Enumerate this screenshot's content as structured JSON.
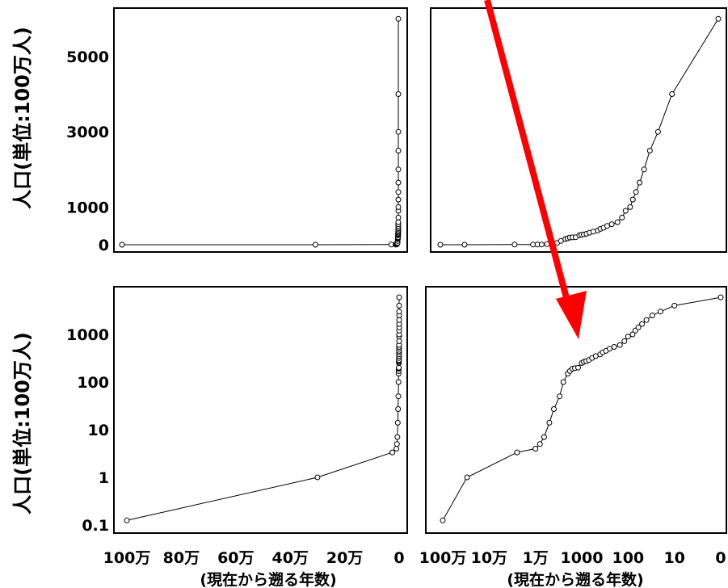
{
  "y_axis_label": "人口(単位:100万人)",
  "x_axis_caption": "(現在から遡る年数)",
  "arrow_color": "#ff0000",
  "chart_data": [
    {
      "type": "line",
      "panel": "top-left",
      "xscale": "linear-reversed",
      "yscale": "linear",
      "xlabel": "",
      "ylabel": "人口(単位:100万人)",
      "yticks": [
        {
          "value": 0,
          "label": "0"
        },
        {
          "value": 1000,
          "label": "1000"
        },
        {
          "value": 3000,
          "label": "3000"
        },
        {
          "value": 5000,
          "label": "5000"
        }
      ],
      "ylim": [
        0,
        6200
      ],
      "xlim": [
        1000000,
        0
      ],
      "points": "population_series"
    },
    {
      "type": "line",
      "panel": "top-right",
      "xscale": "log-reversed",
      "yscale": "linear",
      "xlabel": "(現在から遡る年数)",
      "ylim": [
        0,
        6200
      ],
      "xticks": [
        {
          "value": 1000000,
          "label": "100万"
        },
        {
          "value": 100000,
          "label": "10万"
        },
        {
          "value": 10000,
          "label": "1万"
        },
        {
          "value": 1000,
          "label": "1000"
        },
        {
          "value": 100,
          "label": "100"
        },
        {
          "value": 10,
          "label": "10"
        },
        {
          "value": 1,
          "label": "0"
        }
      ],
      "points": "population_series"
    },
    {
      "type": "line",
      "panel": "bottom-left",
      "xscale": "linear-reversed",
      "yscale": "log",
      "xlabel": "(現在から遡る年数)",
      "ylabel": "人口(単位:100万人)",
      "xticks": [
        {
          "value": 1000000,
          "label": "100万"
        },
        {
          "value": 800000,
          "label": "80万"
        },
        {
          "value": 600000,
          "label": "60万"
        },
        {
          "value": 400000,
          "label": "40万"
        },
        {
          "value": 200000,
          "label": "20万"
        },
        {
          "value": 0,
          "label": "0"
        }
      ],
      "yticks": [
        {
          "value": 0.1,
          "label": "0.1"
        },
        {
          "value": 1,
          "label": "1"
        },
        {
          "value": 10,
          "label": "10"
        },
        {
          "value": 100,
          "label": "100"
        },
        {
          "value": 1000,
          "label": "1000"
        }
      ],
      "points": "population_series"
    },
    {
      "type": "line",
      "panel": "bottom-right",
      "xscale": "log-reversed",
      "yscale": "log",
      "xlabel": "(現在から遡る年数)",
      "xticks": [
        {
          "value": 1000000,
          "label": "100万"
        },
        {
          "value": 100000,
          "label": "10万"
        },
        {
          "value": 10000,
          "label": "1万"
        },
        {
          "value": 1000,
          "label": "1000"
        },
        {
          "value": 100,
          "label": "100"
        },
        {
          "value": 10,
          "label": "10"
        },
        {
          "value": 1,
          "label": "0"
        }
      ],
      "points": "population_series"
    }
  ],
  "population_series": {
    "years_ago": [
      1000000,
      300000,
      25000,
      10000,
      8000,
      6500,
      5000,
      4000,
      3000,
      2500,
      2000,
      1800,
      1600,
      1400,
      1200,
      1000,
      900,
      800,
      700,
      600,
      500,
      400,
      350,
      300,
      250,
      200,
      150,
      120,
      100,
      80,
      70,
      60,
      50,
      40,
      30,
      20,
      10,
      1
    ],
    "population": [
      0.125,
      1,
      3.34,
      4,
      5,
      7,
      14,
      27,
      50,
      100,
      150,
      170,
      190,
      195,
      200,
      250,
      265,
      275,
      290,
      320,
      350,
      380,
      420,
      450,
      500,
      545,
      600,
      720,
      900,
      1000,
      1200,
      1400,
      1650,
      2000,
      2500,
      3000,
      4000,
      6000
    ]
  }
}
